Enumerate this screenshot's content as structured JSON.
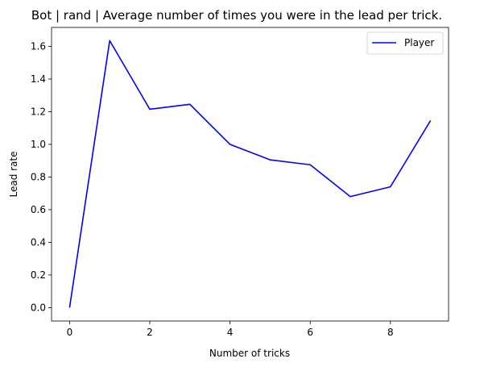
{
  "chart_data": {
    "type": "line",
    "title": "Bot | rand | Average number of times you were in the lead per trick.",
    "xlabel": "Number of tricks",
    "ylabel": "Lead rate",
    "xlim": [
      -0.45,
      9.45
    ],
    "ylim": [
      -0.082,
      1.716
    ],
    "xticks": [
      0,
      2,
      4,
      6,
      8
    ],
    "xtick_labels": [
      "0",
      "2",
      "4",
      "6",
      "8"
    ],
    "yticks": [
      0.0,
      0.2,
      0.4,
      0.6,
      0.8,
      1.0,
      1.2,
      1.4,
      1.6
    ],
    "ytick_labels": [
      "0.0",
      "0.2",
      "0.4",
      "0.6",
      "0.8",
      "1.0",
      "1.2",
      "1.4",
      "1.6"
    ],
    "grid": false,
    "legend_position": "top-right",
    "x": [
      0,
      1,
      2,
      3,
      4,
      5,
      6,
      7,
      8,
      9
    ],
    "series": [
      {
        "name": "Player",
        "color": "#0000ff",
        "values": [
          0.0,
          1.635,
          1.215,
          1.245,
          1.0,
          0.905,
          0.875,
          0.68,
          0.74,
          1.145
        ]
      }
    ]
  }
}
